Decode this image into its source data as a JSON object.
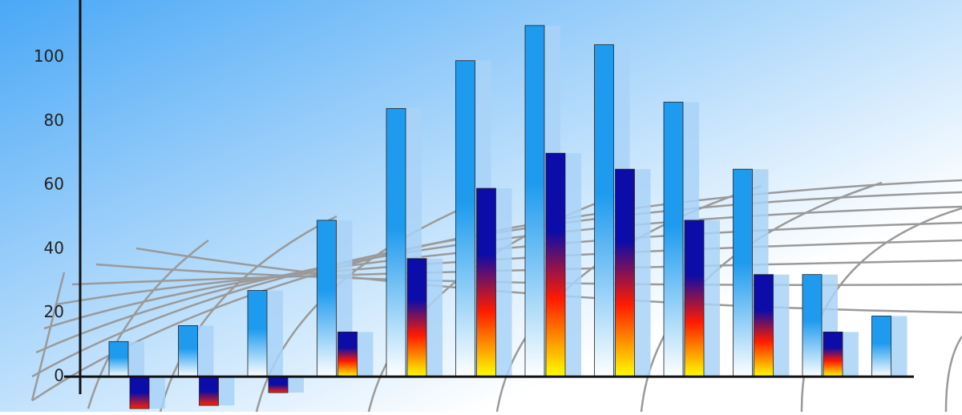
{
  "chart_data": {
    "type": "bar",
    "categories": [
      null,
      null,
      null,
      null,
      null,
      null,
      null,
      null,
      null,
      null,
      null,
      null
    ],
    "series": [
      {
        "color": "#1e9bef",
        "values": [
          11,
          16,
          27,
          49,
          84,
          99,
          110,
          104,
          86,
          65,
          32,
          19
        ]
      },
      {
        "color": "#0c0ca8",
        "values": [
          -10,
          -9,
          -5,
          14,
          37,
          59,
          70,
          65,
          49,
          32,
          14,
          null
        ]
      }
    ],
    "ylim": [
      -11,
      118
    ],
    "yticks": [
      0,
      20,
      40,
      60,
      80,
      100
    ]
  }
}
